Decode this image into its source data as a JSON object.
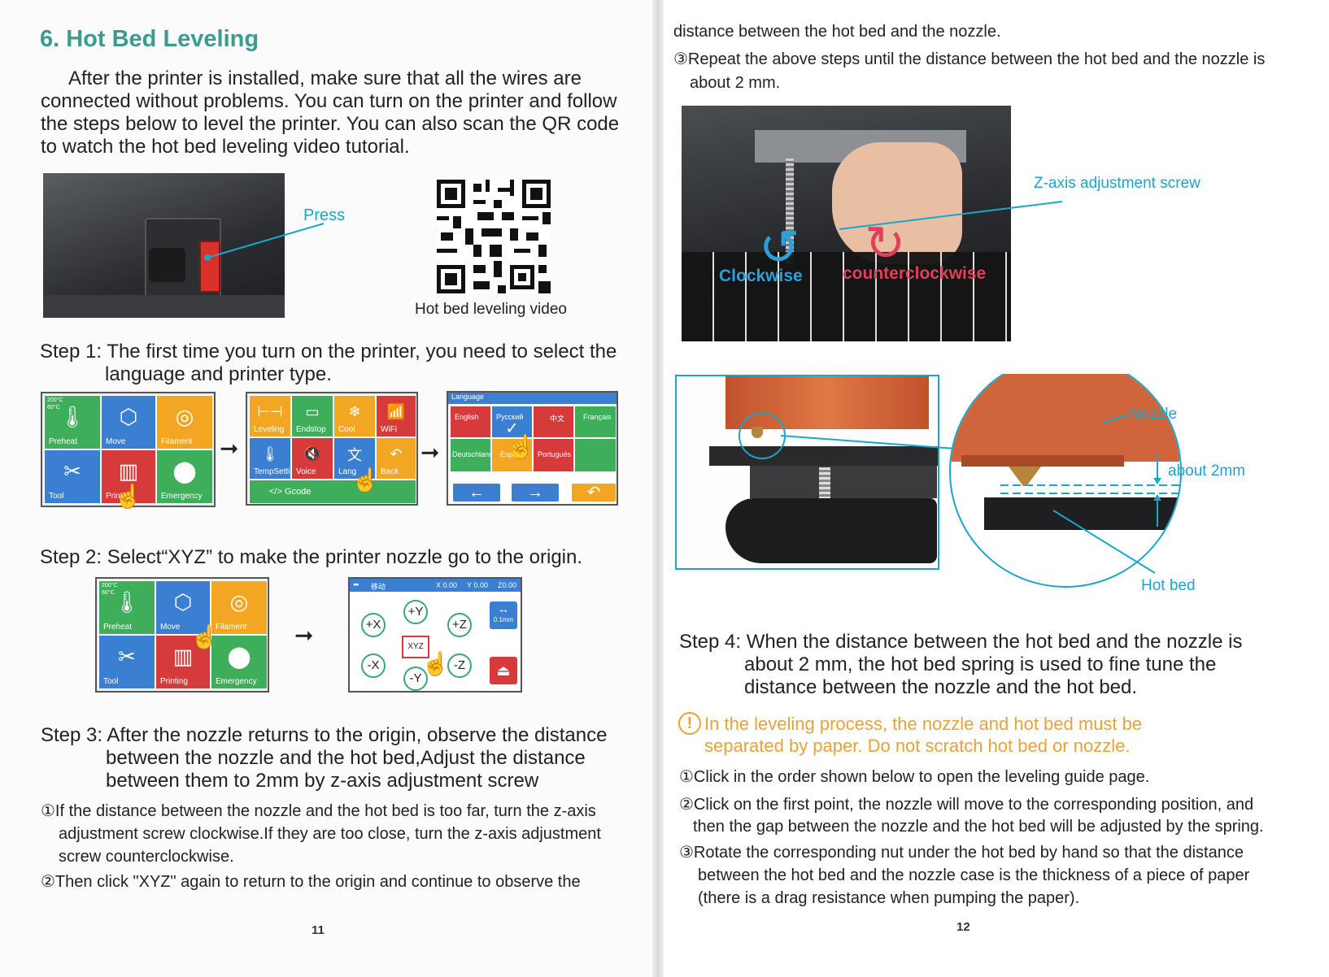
{
  "left": {
    "title": "6. Hot Bed Leveling",
    "intro": [
      "After the printer is installed, make sure that all the wires are",
      "connected without problems. You can turn on the printer and follow",
      "the steps below to level the printer. You can also scan the QR code",
      "to watch the hot bed leveling video tutorial."
    ],
    "press_label": "Press",
    "qr_caption": "Hot bed leveling video",
    "step1": [
      "Step 1: The first time you turn on the printer, you need to select the",
      "language and printer type."
    ],
    "menu_tiles": [
      "Preheat",
      "Move",
      "Filament",
      "Tool",
      "Printing",
      "Emergency"
    ],
    "status_lines": [
      "200°C",
      "60°C"
    ],
    "tool_tiles": [
      "Leveling",
      "Endstop",
      "Cool",
      "WiFi",
      "TempSetting",
      "Voice",
      "Lang",
      "Back"
    ],
    "gcode_label": "</> Gcode",
    "language_title": "Language",
    "languages": [
      "English",
      "Русский",
      "中文",
      "Français",
      "Deutschland",
      "Espanol",
      "Portugués"
    ],
    "step2": "Step 2: Select“XYZ”  to make the printer nozzle go to the origin.",
    "move_title": "移动",
    "move_coords": [
      "X 0.00",
      "Y 0.00",
      "Z0.00"
    ],
    "move_buttons": [
      "+Y",
      "+X",
      "+Z",
      "-X",
      "-Z",
      "-Y",
      "XYZ"
    ],
    "move_step": "0.1mm",
    "step3": [
      "Step 3: After the nozzle returns to the origin, observe the distance",
      "between the nozzle and the hot bed,Adjust the distance",
      "between them to 2mm by z-axis adjustment screw"
    ],
    "step3_items": [
      [
        "①If the distance between the nozzle and the hot bed is too far, turn the z-axis",
        "adjustment screw clockwise.If they are too close, turn the z-axis adjustment",
        "screw counterclockwise."
      ],
      [
        "②Then click \"XYZ\" again to return to the origin and continue to observe the"
      ]
    ],
    "page_number": "11"
  },
  "right": {
    "continued": "distance between the hot bed and the nozzle.",
    "item3": [
      "③Repeat the above steps until the distance between the hot bed and the nozzle is",
      "about 2 mm."
    ],
    "z_screw_label": "Z-axis adjustment screw",
    "clockwise_label": "Clockwise",
    "counterclockwise_label": "counterclockwise",
    "nozzle_label": "Nozzle",
    "about_label": "about 2mm",
    "hotbed_label": "Hot bed",
    "step4": [
      "Step 4: When the distance between the hot bed and the nozzle is",
      "about 2 mm, the hot bed spring is used to fine tune the",
      "distance between the nozzle and the hot bed."
    ],
    "warning": [
      "In the leveling process, the nozzle and hot bed must be",
      "separated by paper. Do not scratch hot bed or nozzle."
    ],
    "items": [
      [
        "①Click in the order shown below to open the leveling guide page."
      ],
      [
        "②Click on the first point, the nozzle will move to the corresponding position, and",
        "then the gap between the nozzle and the hot bed will be adjusted by the spring."
      ],
      [
        "③Rotate the corresponding nut under the hot bed by hand so that the distance",
        "between the hot bed and the nozzle case is the thickness of a piece of paper",
        "(there is a drag resistance when pumping the paper)."
      ]
    ],
    "page_number": "12"
  },
  "colors": {
    "title_teal": "#3a9c8d",
    "cyan": "#1aa6c8",
    "warning_orange": "#e8a23a"
  }
}
